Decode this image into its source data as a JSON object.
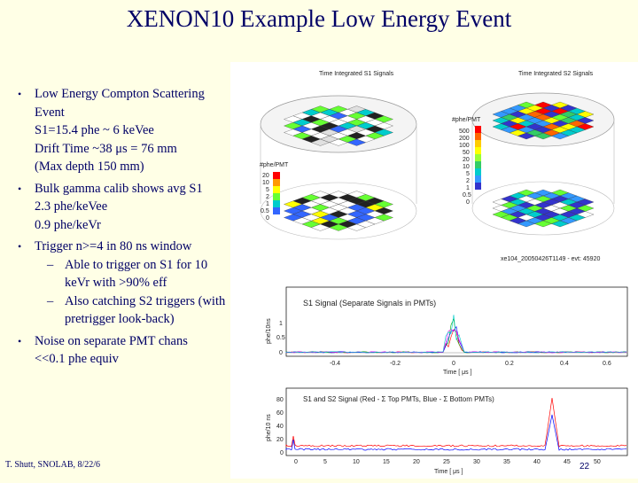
{
  "slide": {
    "title": "XENON10 Example Low Energy Event",
    "footer": "T. Shutt, SNOLAB, 8/22/6",
    "page_number": "22"
  },
  "bullets": [
    {
      "lines": [
        "Low Energy Compton Scattering",
        "Event",
        "S1=15.4 phe ~ 6 keVee",
        "Drift Time ~38 μs = 76 mm",
        "(Max depth 150 mm)"
      ]
    },
    {
      "lines": [
        "Bulk gamma calib shows avg S1",
        "2.3 phe/keVee",
        "0.9 phe/keVr"
      ]
    },
    {
      "lines": [
        "Trigger n>=4 in 80 ns window"
      ],
      "subs": [
        {
          "lines": [
            "Able to trigger on S1 for 10",
            "keVr with >90% eff"
          ]
        },
        {
          "lines": [
            "Also catching S2 triggers (with",
            "pretrigger look-back)"
          ]
        }
      ]
    },
    {
      "lines": [
        "Noise on separate PMT chans",
        "<<0.1 phe equiv"
      ]
    }
  ],
  "figure": {
    "s1_panel_title": "Time Integrated S1 Signals",
    "s2_panel_title": "Time Integrated S2 Signals",
    "s1_scale_label": "#phe/PMT",
    "s1_scale_ticks": [
      "20",
      "10",
      "5",
      "2",
      "1",
      "0.5",
      "0"
    ],
    "s2_scale_label": "#phe/PMT",
    "s2_scale_ticks": [
      "500",
      "200",
      "100",
      "50",
      "20",
      "10",
      "5",
      "2",
      "1",
      "0.5",
      "0"
    ],
    "event_label": "xe104_20050426T1149 - evt: 45920",
    "plot1_title": "S1 Signal (Separate Signals in PMTs)",
    "plot1_ylabel": "phe/10ns",
    "plot1_xticks": [
      "-0.4",
      "-0.2",
      "0",
      "0.2",
      "0.4",
      "0.6"
    ],
    "plot1_xlabel": "Time [ μs ]",
    "plot1_yticks": [
      "1",
      "0.5",
      "0"
    ],
    "plot2_title": "S1 and S2 Signal (Red - Σ Top PMTs, Blue - Σ Bottom PMTs)",
    "plot2_ylabel": "phe/10 ns",
    "plot2_yticks": [
      "80",
      "60",
      "40",
      "20",
      "0"
    ],
    "plot2_xticks": [
      "0",
      "5",
      "10",
      "15",
      "20",
      "25",
      "30",
      "35",
      "40",
      "45",
      "50"
    ],
    "plot2_xlabel": "Time [ μs ]"
  },
  "colors": {
    "text": "#000066",
    "background": "#ffffe6"
  }
}
